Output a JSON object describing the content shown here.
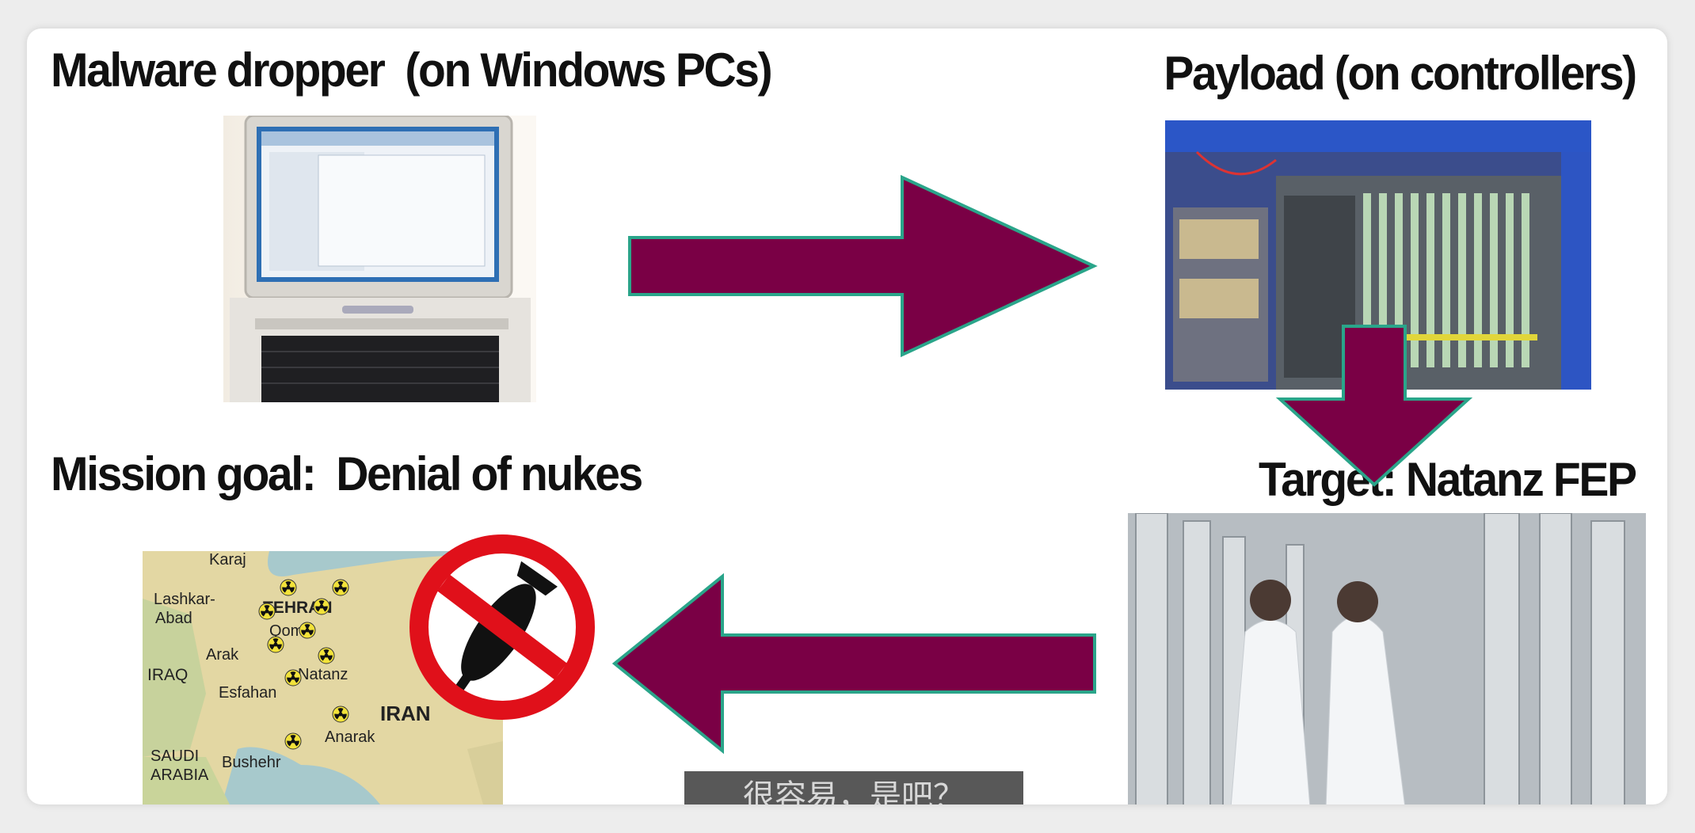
{
  "slide": {
    "top_left_heading": "Malware dropper  (on Windows PCs)",
    "top_right_heading": "Payload (on controllers)",
    "bottom_left_heading": "Mission goal:  Denial of nukes",
    "bottom_right_heading": "Target: Natanz FEP"
  },
  "map": {
    "labels": [
      "Karaj",
      "Lashkar-",
      "Abad",
      "TEHRAN",
      "Qom",
      "Arak",
      "IRAQ",
      "Natanz",
      "Esfahan",
      "IRAN",
      "Anarak",
      "SAUDI",
      "ARABIA",
      "Bushehr"
    ]
  },
  "subtitle": {
    "text": "很容易，是吧？"
  },
  "colors": {
    "arrow_fill": "#7a0045",
    "arrow_border": "#2aa58a",
    "no_sign": "#e0101a"
  },
  "icons": {
    "radiation": "radiation-icon",
    "no_symbol": "no-bomb-icon"
  }
}
